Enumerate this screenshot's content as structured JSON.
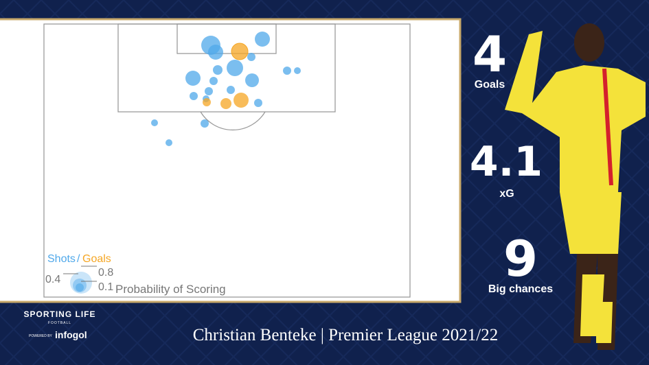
{
  "stats": [
    {
      "value": "4",
      "label": "Goals"
    },
    {
      "value": "4.1",
      "label": "xG"
    },
    {
      "value": "9",
      "label": "Big chances"
    }
  ],
  "title": "Christian Benteke | Premier League 2021/22",
  "legend": {
    "shots": "Shots",
    "separator": "/",
    "goals": "Goals",
    "sizes": [
      "0.8",
      "0.4",
      "0.1"
    ],
    "caption": "Probability of Scoring"
  },
  "branding": {
    "name": "SPORTING LIFE",
    "sub": "FOOTBALL",
    "powered": "POWERED BY",
    "partner": "infogol"
  }
}
